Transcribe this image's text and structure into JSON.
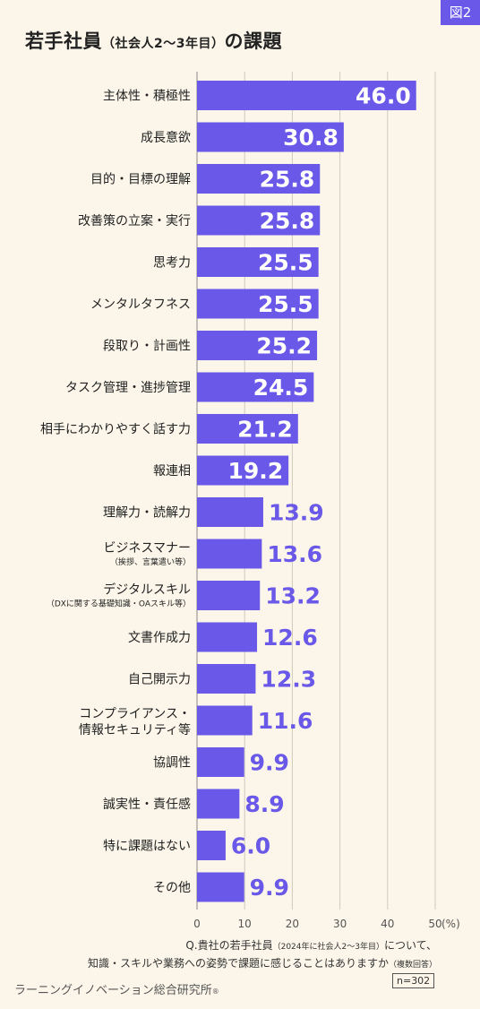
{
  "figure_tag": "図2",
  "title_main": "若手社員",
  "title_paren": "（社会人2〜3年目）",
  "title_tail": "の課題",
  "question_line1_pre": "Q.貴社の若手社員",
  "question_line1_paren": "（2024年に社会人2〜3年目）",
  "question_line1_post": "について、",
  "question_line2_pre": "知識・スキルや業務への姿勢で課題に感じることはありますか",
  "question_line2_paren": "（複数回答）",
  "sample_size": "n=302",
  "credit": "ラーニングイノベーション総合研究所",
  "credit_mark": "®",
  "colors": {
    "bar": "#6a58e8",
    "background": "#fbf6e9",
    "label_inside": "#ffffff",
    "label_outside": "#6a58e8"
  },
  "chart_data": {
    "type": "bar",
    "orientation": "horizontal",
    "categories": [
      [
        "主体性・積極性"
      ],
      [
        "成長意欲"
      ],
      [
        "目的・目標の理解"
      ],
      [
        "改善策の立案・実行"
      ],
      [
        "思考力"
      ],
      [
        "メンタルタフネス"
      ],
      [
        "段取り・計画性"
      ],
      [
        "タスク管理・進捗管理"
      ],
      [
        "相手にわかりやすく話す力"
      ],
      [
        "報連相"
      ],
      [
        "理解力・読解力"
      ],
      [
        "ビジネスマナー",
        "（挨拶、言葉遣い等）"
      ],
      [
        "デジタルスキル",
        "（DXに関する基礎知識・OAスキル等）"
      ],
      [
        "文書作成力"
      ],
      [
        "自己開示力"
      ],
      [
        "コンプライアンス・",
        "情報セキュリティ等"
      ],
      [
        "協調性"
      ],
      [
        "誠実性・責任感"
      ],
      [
        "特に課題はない"
      ],
      [
        "その他"
      ]
    ],
    "values": [
      46.0,
      30.8,
      25.8,
      25.8,
      25.5,
      25.5,
      25.2,
      24.5,
      21.2,
      19.2,
      13.9,
      13.6,
      13.2,
      12.6,
      12.3,
      11.6,
      9.9,
      8.9,
      6.0,
      9.9
    ],
    "value_labels": [
      "46.0",
      "30.8",
      "25.8",
      "25.8",
      "25.5",
      "25.5",
      "25.2",
      "24.5",
      "21.2",
      "19.2",
      "13.9",
      "13.6",
      "13.2",
      "12.6",
      "12.3",
      "11.6",
      "9.9",
      "8.9",
      "6.0",
      "9.9"
    ],
    "xlim": [
      0,
      50
    ],
    "xticks": [
      "0",
      "10",
      "20",
      "30",
      "40",
      "50"
    ],
    "x_unit": "(%)",
    "grid": true
  }
}
